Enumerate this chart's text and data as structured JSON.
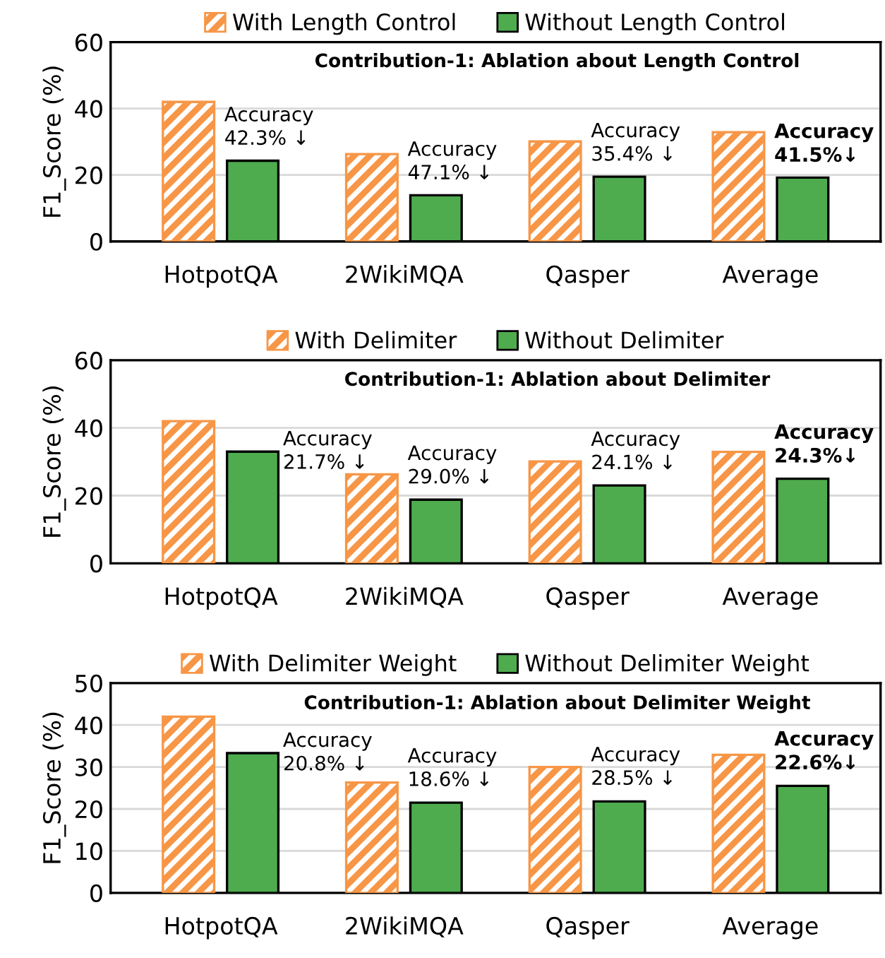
{
  "chart_data": [
    {
      "type": "bar",
      "title": "Contribution-1: Ablation about Length Control",
      "ylabel": "F1_Score (%)",
      "categories": [
        "HotpotQA",
        "2WikiMQA",
        "Qasper",
        "Average"
      ],
      "series": [
        {
          "name": "With Length Control",
          "color": "#f79646",
          "values": [
            42,
            26.3,
            30.1,
            32.9
          ]
        },
        {
          "name": "Without Length Control",
          "color": "#4eac4e",
          "values": [
            24.3,
            13.9,
            19.5,
            19.2
          ]
        }
      ],
      "ylim": [
        0,
        60
      ],
      "yticks": [
        0,
        20,
        40,
        60
      ],
      "grid": "y",
      "legend": "top",
      "annotations": [
        "Accuracy\n42.3% ↓",
        "Accuracy\n47.1% ↓",
        "Accuracy\n35.4% ↓",
        "Accuracy\n41.5%↓"
      ]
    },
    {
      "type": "bar",
      "title": "Contribution-1: Ablation about Delimiter",
      "ylabel": "F1_Score (%)",
      "categories": [
        "HotpotQA",
        "2WikiMQA",
        "Qasper",
        "Average"
      ],
      "series": [
        {
          "name": "With Delimiter",
          "color": "#f79646",
          "values": [
            42,
            26.3,
            30.1,
            32.9
          ]
        },
        {
          "name": "Without Delimiter",
          "color": "#4eac4e",
          "values": [
            33,
            18.8,
            23,
            25
          ]
        }
      ],
      "ylim": [
        0,
        60
      ],
      "yticks": [
        0,
        20,
        40,
        60
      ],
      "grid": "y",
      "legend": "top",
      "annotations": [
        "Accuracy\n21.7% ↓",
        "Accuracy\n29.0% ↓",
        "Accuracy\n24.1% ↓",
        "Accuracy\n24.3%↓"
      ]
    },
    {
      "type": "bar",
      "title": "Contribution-1: Ablation about Delimiter Weight",
      "ylabel": "F1_Score (%)",
      "categories": [
        "HotpotQA",
        "2WikiMQA",
        "Qasper",
        "Average"
      ],
      "series": [
        {
          "name": "With Delimiter Weight",
          "color": "#f79646",
          "values": [
            42,
            26.3,
            30,
            32.9
          ]
        },
        {
          "name": "Without Delimiter Weight",
          "color": "#4eac4e",
          "values": [
            33.3,
            21.5,
            21.8,
            25.5
          ]
        }
      ],
      "ylim": [
        0,
        50
      ],
      "yticks": [
        0,
        10,
        20,
        30,
        40,
        50
      ],
      "grid": "y",
      "legend": "top",
      "annotations": [
        "Accuracy\n20.8% ↓",
        "Accuracy\n18.6% ↓",
        "Accuracy\n28.5% ↓",
        "Accuracy\n22.6%↓"
      ]
    }
  ]
}
